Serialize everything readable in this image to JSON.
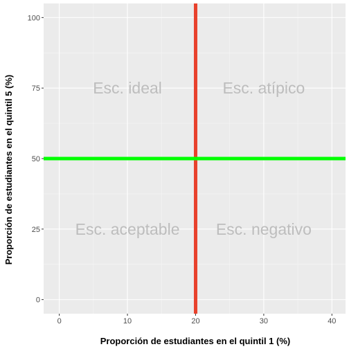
{
  "chart_data": {
    "type": "scatter",
    "title": "",
    "xlabel": "Proporción de estudiantes en el quintil 1 (%)",
    "ylabel": "Proporción de estudiantes en el quintil 5 (%)",
    "xlim": [
      -2.3,
      42
    ],
    "ylim": [
      -5,
      105
    ],
    "x_ticks": [
      0,
      10,
      20,
      30,
      40
    ],
    "y_ticks": [
      0,
      25,
      50,
      75,
      100
    ],
    "x_tick_labels": [
      "0",
      "10",
      "20",
      "30",
      "40"
    ],
    "y_tick_labels": [
      "0",
      "25",
      "50",
      "75",
      "100"
    ],
    "grid": true,
    "legend": "none",
    "reference_lines": [
      {
        "orientation": "vertical",
        "x": 20,
        "color": "#e8412c"
      },
      {
        "orientation": "horizontal",
        "y": 50,
        "color": "#00ff00"
      }
    ],
    "annotations": [
      {
        "text": "Esc. ideal",
        "x": 10,
        "y": 75
      },
      {
        "text": "Esc. atípico",
        "x": 30,
        "y": 75
      },
      {
        "text": "Esc. aceptable",
        "x": 10,
        "y": 25
      },
      {
        "text": "Esc. negativo",
        "x": 30,
        "y": 25
      }
    ],
    "colors": {
      "panel_background": "#ebebeb",
      "grid_major": "#ffffff",
      "grid_minor": "#f5f5f5",
      "tick_label": "#4d4d4d",
      "annotation": "#bdbdbd"
    }
  }
}
